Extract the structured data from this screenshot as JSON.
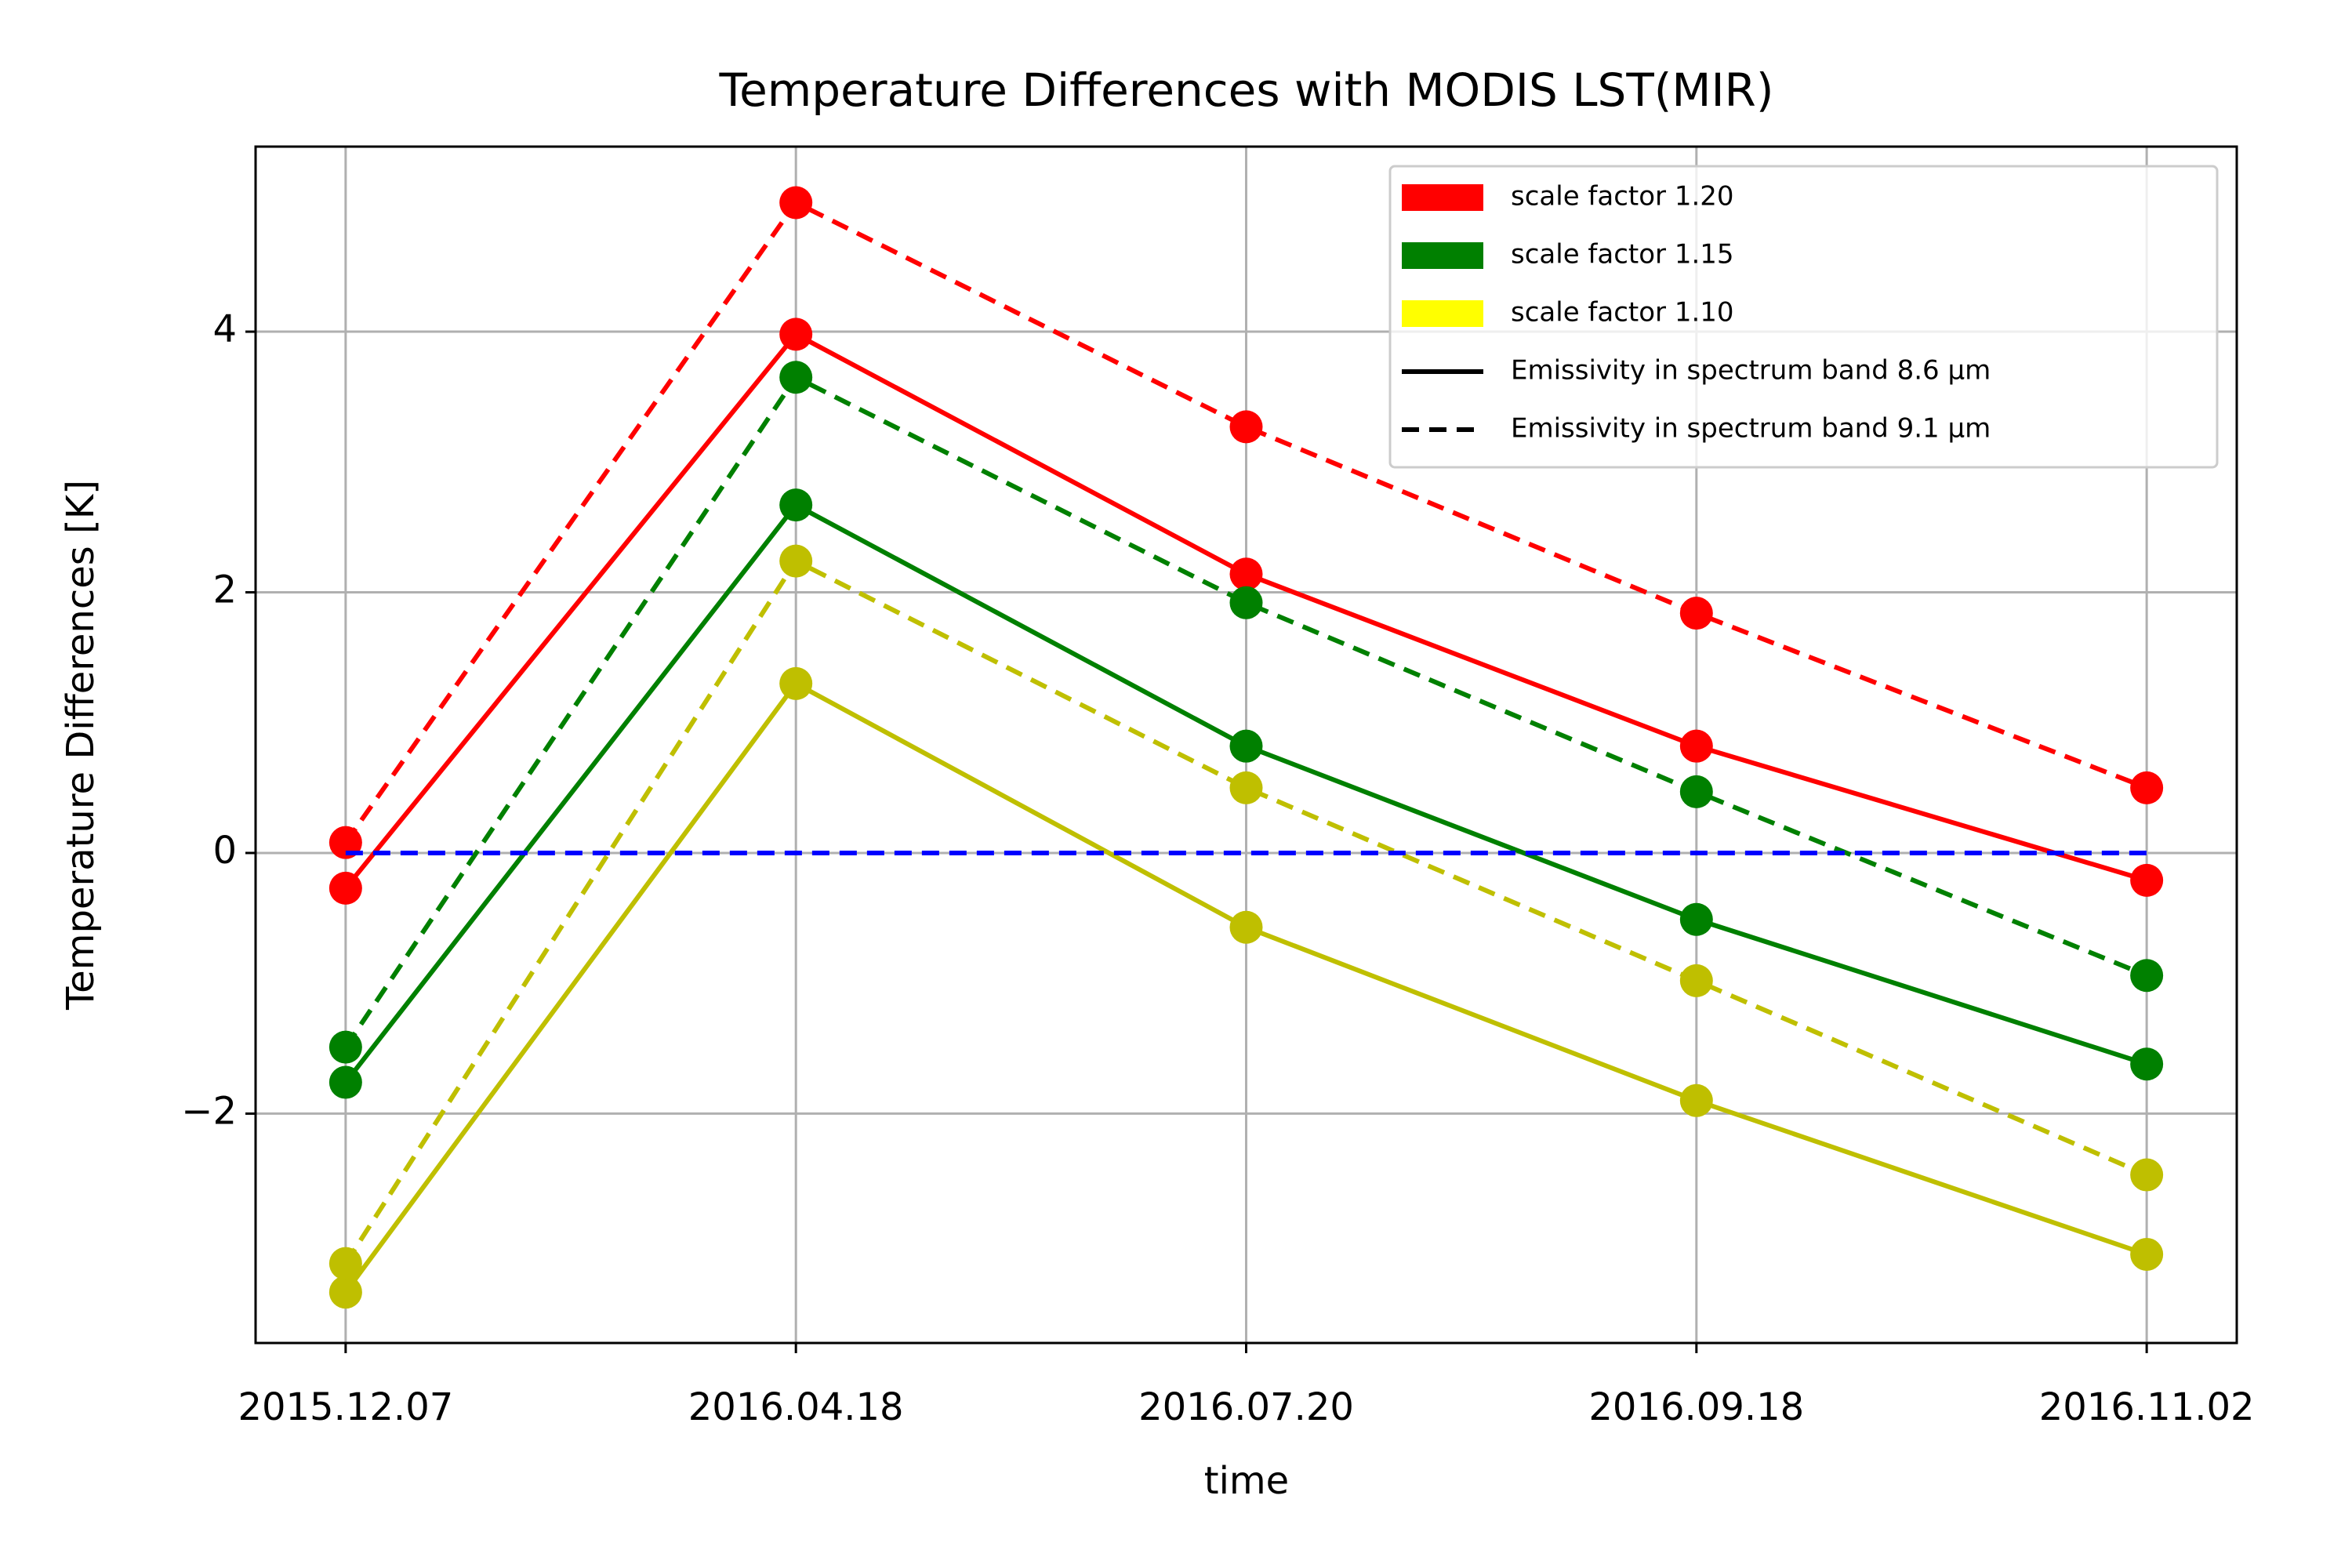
{
  "chart_data": {
    "type": "line",
    "title": "Temperature Differences with MODIS LST(MIR)",
    "x_label": "time",
    "y_label": "Temperature Differences [K]",
    "categories": [
      "2015.12.07",
      "2016.04.18",
      "2016.07.20",
      "2016.09.18",
      "2016.11.02"
    ],
    "ylim": [
      -3.76,
      5.42
    ],
    "yticks": [
      {
        "value": -2,
        "label": "−2"
      },
      0,
      2,
      4
    ],
    "grid": true,
    "series": [
      {
        "color": "#ff0000",
        "linestyle": "solid",
        "values": [
          -0.27,
          3.98,
          2.14,
          0.82,
          -0.21
        ]
      },
      {
        "color": "#ff0000",
        "linestyle": "dashed",
        "values": [
          0.08,
          4.99,
          3.27,
          1.84,
          0.5
        ]
      },
      {
        "color": "#008000",
        "linestyle": "solid",
        "values": [
          -1.76,
          2.67,
          0.82,
          -0.51,
          -1.62
        ]
      },
      {
        "color": "#008000",
        "linestyle": "dashed",
        "values": [
          -1.49,
          3.65,
          1.92,
          0.47,
          -0.94
        ]
      },
      {
        "color": "#bfbf00",
        "linestyle": "solid",
        "values": [
          -3.37,
          1.3,
          -0.57,
          -1.9,
          -3.08
        ]
      },
      {
        "color": "#bfbf00",
        "linestyle": "dashed",
        "values": [
          -3.15,
          2.24,
          0.5,
          -0.98,
          -2.47
        ]
      },
      {
        "color": "#0000ff",
        "linestyle": "dashed",
        "markers": false,
        "values": [
          0,
          0,
          0,
          0,
          0
        ]
      }
    ],
    "legend_position": "upper right",
    "legend": [
      {
        "label": "scale factor 1.20",
        "handle": "patch",
        "color": "#ff0000"
      },
      {
        "label": "scale factor 1.15",
        "handle": "patch",
        "color": "#008000"
      },
      {
        "label": "scale factor 1.10",
        "handle": "patch",
        "color": "#ffff00"
      },
      {
        "label": "Emissivity in spectrum band 8.6 μm",
        "handle": "line",
        "linestyle": "solid",
        "color": "#000000"
      },
      {
        "label": "Emissivity in spectrum band 9.1 μm",
        "handle": "line",
        "linestyle": "dashed",
        "color": "#000000"
      }
    ]
  }
}
